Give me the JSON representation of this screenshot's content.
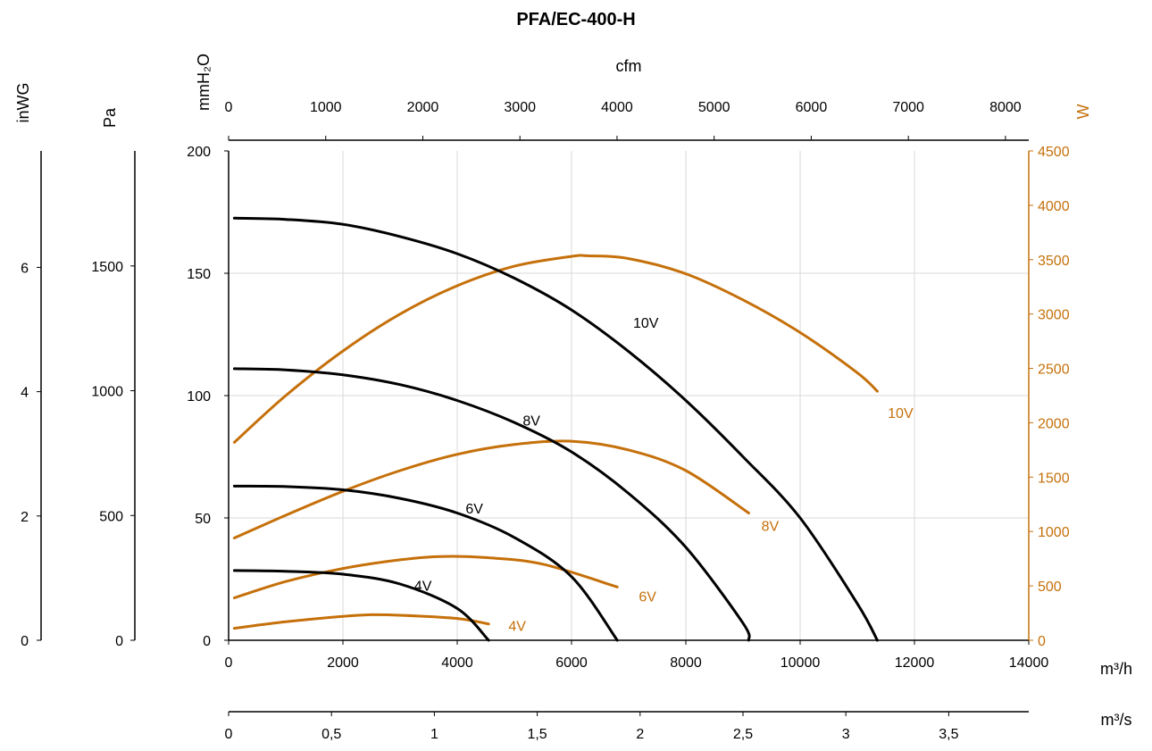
{
  "chart_data": {
    "type": "line",
    "title": "PFA/EC-400-H",
    "colors": {
      "pressure": "#000000",
      "power": "#c5700a",
      "grid": "#d9d9d9"
    },
    "grid": true,
    "x_axis": {
      "label": "m³/h",
      "range": [
        0,
        14000
      ],
      "ticks": [
        "0",
        "2000",
        "4000",
        "6000",
        "8000",
        "10000",
        "12000",
        "14000"
      ]
    },
    "x_axis_m3s": {
      "label": "m³/s",
      "range": [
        0,
        3.889
      ],
      "ticks": [
        "0",
        "0,5",
        "1",
        "1,5",
        "2",
        "2,5",
        "3",
        "3,5"
      ]
    },
    "x_axis_cfm": {
      "label": "cfm",
      "range": [
        0,
        8240
      ],
      "ticks": [
        "0",
        "1000",
        "2000",
        "3000",
        "4000",
        "5000",
        "6000",
        "7000",
        "8000"
      ]
    },
    "y_axis_mmh2o": {
      "label": "mmH₂O",
      "range": [
        0,
        200
      ],
      "ticks": [
        "0",
        "50",
        "100",
        "150",
        "200"
      ]
    },
    "y_axis_pa": {
      "label": "Pa",
      "range": [
        0,
        1961
      ],
      "ticks": [
        "0",
        "500",
        "1000",
        "1500"
      ]
    },
    "y_axis_inwg": {
      "label": "inWG",
      "range": [
        0,
        7.874
      ],
      "ticks": [
        "0",
        "2",
        "4",
        "6"
      ]
    },
    "y_axis_w": {
      "label": "W",
      "range": [
        0,
        4500
      ],
      "ticks": [
        "0",
        "500",
        "1000",
        "1500",
        "2000",
        "2500",
        "3000",
        "3500",
        "4000",
        "4500"
      ]
    },
    "pressure_series": [
      {
        "name": "10V",
        "x": [
          100,
          1000,
          2000,
          3000,
          4000,
          5000,
          6000,
          7000,
          8000,
          9000,
          10000,
          11000,
          11350
        ],
        "y": [
          172.5,
          172,
          170,
          165,
          158,
          148,
          135,
          118,
          98,
          75,
          50,
          15,
          0
        ]
      },
      {
        "name": "8V",
        "x": [
          100,
          1000,
          2000,
          3000,
          4000,
          5000,
          6000,
          7000,
          8000,
          9000,
          9100
        ],
        "y": [
          111,
          110.5,
          108.5,
          104.5,
          98,
          89,
          77,
          60,
          38,
          7,
          0
        ]
      },
      {
        "name": "6V",
        "x": [
          100,
          1000,
          2000,
          3000,
          4000,
          5000,
          6000,
          6800
        ],
        "y": [
          63,
          62.8,
          61.5,
          58,
          52,
          42,
          26,
          0
        ]
      },
      {
        "name": "4V",
        "x": [
          100,
          1000,
          2000,
          3000,
          4000,
          4550
        ],
        "y": [
          28.5,
          28.2,
          27,
          23,
          13,
          0
        ]
      }
    ],
    "power_series": [
      {
        "name": "10V",
        "x": [
          100,
          1000,
          2000,
          3000,
          4000,
          5000,
          6000,
          6300,
          7000,
          8000,
          9000,
          10000,
          11000,
          11350
        ],
        "y": [
          1820,
          2250,
          2660,
          3000,
          3260,
          3440,
          3530,
          3535,
          3510,
          3370,
          3130,
          2830,
          2460,
          2290
        ]
      },
      {
        "name": "8V",
        "x": [
          100,
          1000,
          2000,
          3000,
          4000,
          5000,
          6000,
          7000,
          8000,
          9100
        ],
        "y": [
          940,
          1150,
          1370,
          1560,
          1710,
          1800,
          1830,
          1750,
          1560,
          1170
        ]
      },
      {
        "name": "6V",
        "x": [
          100,
          1000,
          2000,
          3000,
          3700,
          4500,
          5500,
          6800
        ],
        "y": [
          390,
          540,
          660,
          740,
          770,
          760,
          700,
          490
        ]
      },
      {
        "name": "4V",
        "x": [
          100,
          1000,
          2000,
          2500,
          3000,
          4000,
          4550
        ],
        "y": [
          110,
          170,
          220,
          235,
          230,
          200,
          150
        ]
      }
    ]
  }
}
